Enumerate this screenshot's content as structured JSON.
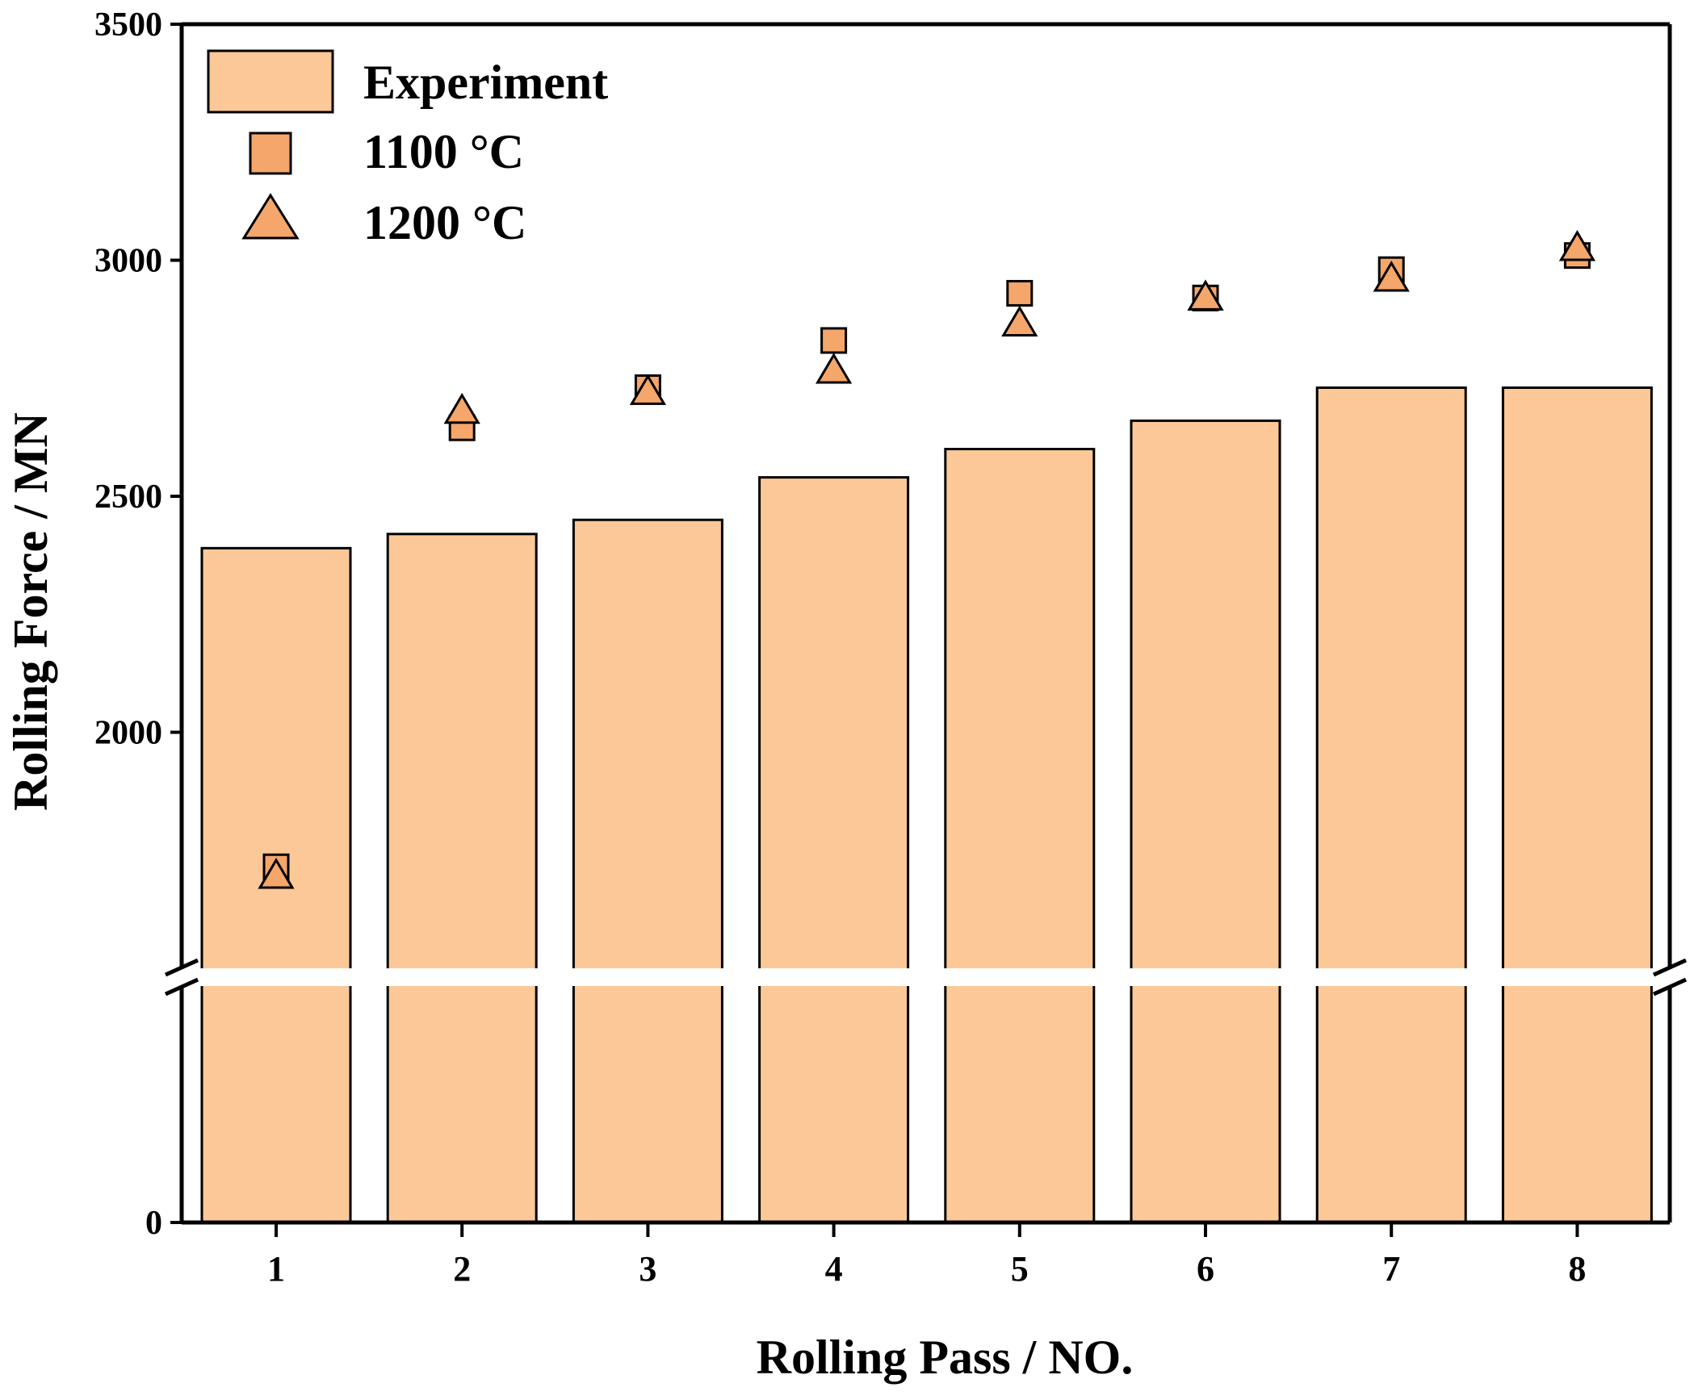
{
  "chart_data": {
    "type": "bar",
    "title": "",
    "xlabel": "Rolling Pass / NO.",
    "ylabel": "Rolling Force / MN",
    "categories": [
      "1",
      "2",
      "3",
      "4",
      "5",
      "6",
      "7",
      "8"
    ],
    "ylim": [
      0,
      3500
    ],
    "axis_break": [
      0,
      1500
    ],
    "yticks": [
      0,
      2000,
      2500,
      3000,
      3500
    ],
    "ytick_labels": [
      "0",
      "2000",
      "2500",
      "3000",
      "3500"
    ],
    "grid": false,
    "legend_position": "top-left",
    "series": [
      {
        "name": "Experiment",
        "kind": "bar",
        "values": [
          2390,
          2420,
          2450,
          2540,
          2600,
          2660,
          2730,
          2730
        ]
      },
      {
        "name": "1100 °C",
        "kind": "scatter",
        "marker": "square",
        "values": [
          1715,
          2645,
          2730,
          2830,
          2930,
          2920,
          2980,
          3010
        ]
      },
      {
        "name": "1200 °C",
        "kind": "scatter",
        "marker": "triangle",
        "values": [
          1700,
          2685,
          2725,
          2770,
          2870,
          2925,
          2965,
          3030
        ]
      }
    ],
    "colors": {
      "bar_fill": "#fcc897",
      "marker_fill": "#f5a66a",
      "stroke": "#000000"
    }
  }
}
